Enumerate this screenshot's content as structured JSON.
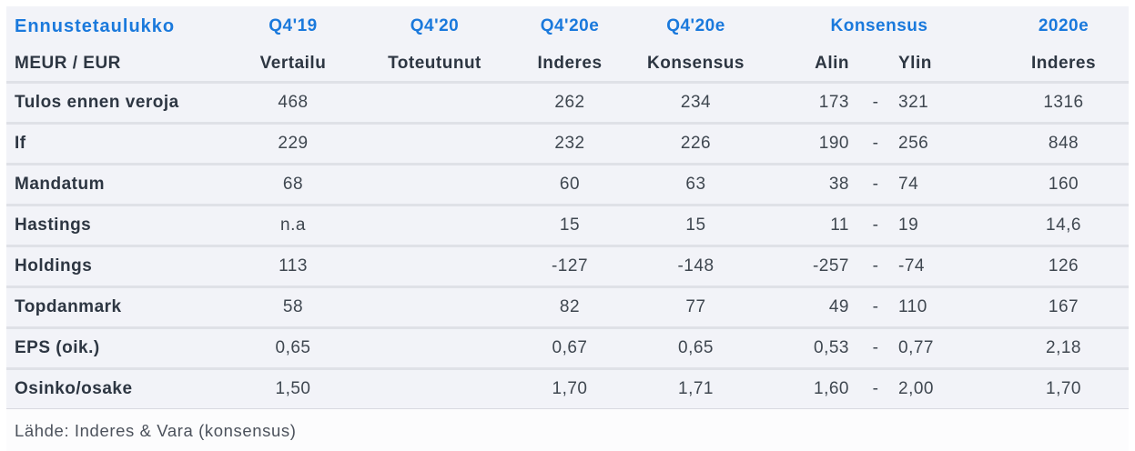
{
  "chart_data": {
    "type": "table",
    "title": "Ennustetaulukko",
    "units_label": "MEUR / EUR",
    "column_groups_top": [
      "Q4'19",
      "Q4'20",
      "Q4'20e",
      "Q4'20e",
      "Konsensus",
      "2020e"
    ],
    "column_sub": [
      "Vertailu",
      "Toteutunut",
      "Inderes",
      "Konsensus",
      "Alin",
      "Ylin",
      "Inderes"
    ],
    "range_separator": "-",
    "rows": [
      {
        "label": "Tulos ennen veroja",
        "vertailu": "468",
        "toteutunut": "",
        "inderes": "262",
        "konsensus": "234",
        "alin": "173",
        "ylin": "321",
        "inderes_2020e": "1316"
      },
      {
        "label": "If",
        "vertailu": "229",
        "toteutunut": "",
        "inderes": "232",
        "konsensus": "226",
        "alin": "190",
        "ylin": "256",
        "inderes_2020e": "848"
      },
      {
        "label": "Mandatum",
        "vertailu": "68",
        "toteutunut": "",
        "inderes": "60",
        "konsensus": "63",
        "alin": "38",
        "ylin": "74",
        "inderes_2020e": "160"
      },
      {
        "label": "Hastings",
        "vertailu": "n.a",
        "toteutunut": "",
        "inderes": "15",
        "konsensus": "15",
        "alin": "11",
        "ylin": "19",
        "inderes_2020e": "14,6"
      },
      {
        "label": "Holdings",
        "vertailu": "113",
        "toteutunut": "",
        "inderes": "-127",
        "konsensus": "-148",
        "alin": "-257",
        "ylin": "-74",
        "inderes_2020e": "126"
      },
      {
        "label": "Topdanmark",
        "vertailu": "58",
        "toteutunut": "",
        "inderes": "82",
        "konsensus": "77",
        "alin": "49",
        "ylin": "110",
        "inderes_2020e": "167"
      },
      {
        "label": "EPS (oik.)",
        "vertailu": "0,65",
        "toteutunut": "",
        "inderes": "0,67",
        "konsensus": "0,65",
        "alin": "0,53",
        "ylin": "0,77",
        "inderes_2020e": "2,18"
      },
      {
        "label": "Osinko/osake",
        "vertailu": "1,50",
        "toteutunut": "",
        "inderes": "1,70",
        "konsensus": "1,71",
        "alin": "1,60",
        "ylin": "2,00",
        "inderes_2020e": "1,70"
      }
    ],
    "source": "Lähde: Inderes & Vara (konsensus)"
  },
  "colors": {
    "accent_blue": "#1a79dc",
    "header_text": "#2d3642",
    "body_text": "#3f4750",
    "row_bg": "#f2f3f8",
    "separator": "#dfe1e7",
    "page_bg": "#ffffff"
  }
}
